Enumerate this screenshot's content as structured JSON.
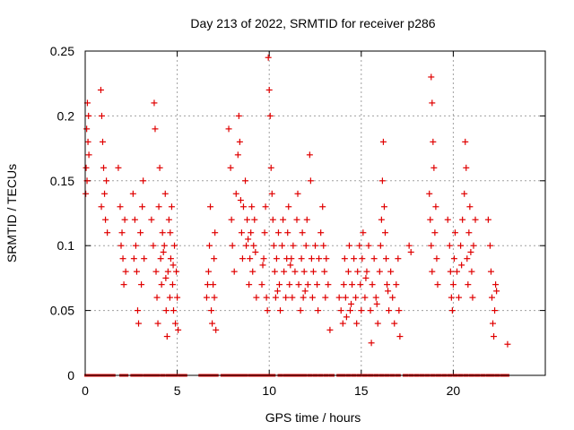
{
  "chart_data": {
    "type": "scatter",
    "title": "Day 213 of 2022, SRMTID for receiver p286",
    "xlabel": "GPS time / hours",
    "ylabel": "SRMTID / TECUs",
    "xlim": [
      0,
      25
    ],
    "ylim": [
      0,
      0.25
    ],
    "xticks": [
      0,
      5,
      10,
      15,
      20
    ],
    "xtick_labels": [
      "0",
      "5",
      "10",
      "15",
      "20"
    ],
    "yticks": [
      0,
      0.05,
      0.1,
      0.15,
      0.2,
      0.25
    ],
    "ytick_labels": [
      "0",
      "0.05",
      "0.1",
      "0.15",
      "0.2",
      "0.25"
    ],
    "grid": true,
    "marker": "plus",
    "color": "#e00000",
    "series": [
      {
        "name": "SRMTID",
        "points": [
          [
            0.05,
            0.16
          ],
          [
            0.08,
            0.19
          ],
          [
            0.12,
            0.21
          ],
          [
            0.15,
            0.18
          ],
          [
            0.1,
            0.15
          ],
          [
            0.2,
            0.17
          ],
          [
            0.03,
            0.14
          ],
          [
            0.18,
            0.2
          ],
          [
            0.85,
            0.22
          ],
          [
            0.9,
            0.2
          ],
          [
            0.95,
            0.18
          ],
          [
            1.0,
            0.16
          ],
          [
            1.05,
            0.14
          ],
          [
            1.1,
            0.12
          ],
          [
            0.88,
            0.13
          ],
          [
            1.15,
            0.15
          ],
          [
            1.2,
            0.11
          ],
          [
            1.8,
            0.16
          ],
          [
            1.9,
            0.13
          ],
          [
            2.0,
            0.11
          ],
          [
            2.05,
            0.09
          ],
          [
            2.1,
            0.07
          ],
          [
            2.15,
            0.12
          ],
          [
            1.95,
            0.1
          ],
          [
            2.2,
            0.08
          ],
          [
            2.6,
            0.14
          ],
          [
            2.7,
            0.12
          ],
          [
            2.75,
            0.1
          ],
          [
            2.8,
            0.08
          ],
          [
            2.85,
            0.05
          ],
          [
            2.9,
            0.04
          ],
          [
            3.0,
            0.11
          ],
          [
            3.1,
            0.13
          ],
          [
            3.15,
            0.15
          ],
          [
            3.2,
            0.09
          ],
          [
            2.65,
            0.09
          ],
          [
            3.05,
            0.07
          ],
          [
            3.6,
            0.12
          ],
          [
            3.7,
            0.1
          ],
          [
            3.75,
            0.21
          ],
          [
            3.8,
            0.19
          ],
          [
            3.85,
            0.08
          ],
          [
            3.9,
            0.06
          ],
          [
            3.95,
            0.04
          ],
          [
            4.0,
            0.13
          ],
          [
            4.05,
            0.16
          ],
          [
            4.1,
            0.09
          ],
          [
            4.15,
            0.07
          ],
          [
            4.2,
            0.11
          ],
          [
            4.3,
            0.1
          ],
          [
            4.35,
            0.14
          ],
          [
            4.4,
            0.05
          ],
          [
            4.45,
            0.03
          ],
          [
            4.5,
            0.08
          ],
          [
            4.55,
            0.12
          ],
          [
            4.6,
            0.06
          ],
          [
            4.65,
            0.09
          ],
          [
            4.7,
            0.13
          ],
          [
            4.75,
            0.07
          ],
          [
            4.8,
            0.05
          ],
          [
            4.85,
            0.1
          ],
          [
            4.9,
            0.04
          ],
          [
            4.95,
            0.08
          ],
          [
            5.0,
            0.06
          ],
          [
            5.05,
            0.035
          ],
          [
            4.25,
            0.095
          ],
          [
            4.38,
            0.075
          ],
          [
            4.62,
            0.11
          ],
          [
            4.78,
            0.085
          ],
          [
            6.6,
            0.06
          ],
          [
            6.7,
            0.08
          ],
          [
            6.75,
            0.1
          ],
          [
            6.8,
            0.13
          ],
          [
            6.85,
            0.05
          ],
          [
            6.9,
            0.04
          ],
          [
            6.95,
            0.07
          ],
          [
            7.0,
            0.09
          ],
          [
            7.05,
            0.11
          ],
          [
            7.1,
            0.035
          ],
          [
            6.65,
            0.07
          ],
          [
            7.02,
            0.06
          ],
          [
            7.8,
            0.19
          ],
          [
            7.9,
            0.16
          ],
          [
            7.95,
            0.12
          ],
          [
            8.0,
            0.1
          ],
          [
            8.1,
            0.08
          ],
          [
            8.2,
            0.14
          ],
          [
            8.3,
            0.17
          ],
          [
            8.35,
            0.2
          ],
          [
            8.4,
            0.18
          ],
          [
            8.5,
            0.11
          ],
          [
            8.55,
            0.09
          ],
          [
            8.6,
            0.13
          ],
          [
            8.7,
            0.15
          ],
          [
            8.75,
            0.1
          ],
          [
            8.8,
            0.12
          ],
          [
            8.9,
            0.07
          ],
          [
            8.95,
            0.09
          ],
          [
            9.0,
            0.11
          ],
          [
            9.05,
            0.13
          ],
          [
            9.1,
            0.08
          ],
          [
            9.15,
            0.1
          ],
          [
            9.2,
            0.12
          ],
          [
            9.3,
            0.06
          ],
          [
            8.45,
            0.135
          ],
          [
            8.85,
            0.105
          ],
          [
            9.25,
            0.095
          ],
          [
            9.6,
            0.07
          ],
          [
            9.7,
            0.09
          ],
          [
            9.75,
            0.11
          ],
          [
            9.8,
            0.13
          ],
          [
            9.85,
            0.06
          ],
          [
            9.9,
            0.05
          ],
          [
            9.95,
            0.245
          ],
          [
            10.0,
            0.22
          ],
          [
            10.05,
            0.2
          ],
          [
            10.1,
            0.16
          ],
          [
            10.15,
            0.14
          ],
          [
            10.2,
            0.12
          ],
          [
            10.25,
            0.1
          ],
          [
            10.3,
            0.08
          ],
          [
            10.35,
            0.06
          ],
          [
            10.4,
            0.09
          ],
          [
            10.5,
            0.11
          ],
          [
            10.55,
            0.07
          ],
          [
            10.6,
            0.05
          ],
          [
            10.7,
            0.1
          ],
          [
            10.75,
            0.12
          ],
          [
            10.8,
            0.08
          ],
          [
            10.9,
            0.06
          ],
          [
            10.95,
            0.09
          ],
          [
            11.0,
            0.11
          ],
          [
            11.05,
            0.13
          ],
          [
            11.1,
            0.07
          ],
          [
            11.2,
            0.09
          ],
          [
            11.25,
            0.06
          ],
          [
            11.3,
            0.1
          ],
          [
            11.4,
            0.08
          ],
          [
            11.5,
            0.12
          ],
          [
            11.55,
            0.14
          ],
          [
            11.6,
            0.07
          ],
          [
            11.7,
            0.05
          ],
          [
            11.75,
            0.09
          ],
          [
            11.8,
            0.11
          ],
          [
            11.85,
            0.06
          ],
          [
            11.9,
            0.08
          ],
          [
            12.0,
            0.1
          ],
          [
            12.05,
            0.12
          ],
          [
            12.1,
            0.07
          ],
          [
            12.2,
            0.17
          ],
          [
            12.25,
            0.15
          ],
          [
            12.3,
            0.09
          ],
          [
            12.35,
            0.06
          ],
          [
            12.4,
            0.08
          ],
          [
            12.5,
            0.1
          ],
          [
            12.6,
            0.07
          ],
          [
            12.65,
            0.05
          ],
          [
            12.7,
            0.09
          ],
          [
            12.8,
            0.11
          ],
          [
            12.9,
            0.13
          ],
          [
            12.95,
            0.1
          ],
          [
            13.0,
            0.08
          ],
          [
            13.05,
            0.06
          ],
          [
            13.1,
            0.09
          ],
          [
            13.2,
            0.07
          ],
          [
            9.65,
            0.085
          ],
          [
            10.45,
            0.065
          ],
          [
            11.15,
            0.085
          ],
          [
            11.95,
            0.065
          ],
          [
            13.3,
            0.035
          ],
          [
            13.8,
            0.06
          ],
          [
            13.9,
            0.05
          ],
          [
            14.0,
            0.04
          ],
          [
            14.05,
            0.07
          ],
          [
            14.1,
            0.09
          ],
          [
            14.15,
            0.06
          ],
          [
            14.2,
            0.045
          ],
          [
            14.3,
            0.08
          ],
          [
            14.35,
            0.1
          ],
          [
            14.4,
            0.05
          ],
          [
            14.5,
            0.07
          ],
          [
            14.6,
            0.09
          ],
          [
            14.7,
            0.06
          ],
          [
            14.75,
            0.04
          ],
          [
            14.8,
            0.08
          ],
          [
            14.9,
            0.1
          ],
          [
            14.95,
            0.07
          ],
          [
            15.0,
            0.05
          ],
          [
            15.05,
            0.09
          ],
          [
            15.1,
            0.11
          ],
          [
            15.2,
            0.06
          ],
          [
            15.3,
            0.08
          ],
          [
            15.4,
            0.1
          ],
          [
            15.5,
            0.05
          ],
          [
            15.55,
            0.025
          ],
          [
            15.6,
            0.07
          ],
          [
            15.7,
            0.09
          ],
          [
            15.8,
            0.06
          ],
          [
            15.9,
            0.04
          ],
          [
            16.0,
            0.08
          ],
          [
            16.05,
            0.1
          ],
          [
            16.1,
            0.12
          ],
          [
            16.15,
            0.15
          ],
          [
            16.2,
            0.18
          ],
          [
            16.25,
            0.13
          ],
          [
            16.3,
            0.11
          ],
          [
            16.35,
            0.09
          ],
          [
            16.4,
            0.07
          ],
          [
            16.5,
            0.05
          ],
          [
            16.6,
            0.08
          ],
          [
            16.7,
            0.06
          ],
          [
            16.8,
            0.04
          ],
          [
            16.9,
            0.07
          ],
          [
            17.0,
            0.09
          ],
          [
            17.05,
            0.05
          ],
          [
            17.1,
            0.03
          ],
          [
            14.45,
            0.055
          ],
          [
            15.25,
            0.075
          ],
          [
            15.85,
            0.055
          ],
          [
            16.45,
            0.065
          ],
          [
            17.6,
            0.1
          ],
          [
            17.7,
            0.095
          ],
          [
            18.8,
            0.23
          ],
          [
            18.85,
            0.21
          ],
          [
            18.9,
            0.18
          ],
          [
            18.95,
            0.16
          ],
          [
            18.7,
            0.14
          ],
          [
            18.75,
            0.12
          ],
          [
            18.8,
            0.1
          ],
          [
            18.85,
            0.08
          ],
          [
            19.0,
            0.11
          ],
          [
            19.05,
            0.13
          ],
          [
            19.1,
            0.09
          ],
          [
            19.15,
            0.07
          ],
          [
            19.7,
            0.12
          ],
          [
            19.8,
            0.1
          ],
          [
            19.85,
            0.08
          ],
          [
            19.9,
            0.06
          ],
          [
            19.95,
            0.05
          ],
          [
            20.0,
            0.07
          ],
          [
            20.05,
            0.09
          ],
          [
            20.1,
            0.11
          ],
          [
            20.2,
            0.08
          ],
          [
            20.3,
            0.06
          ],
          [
            20.4,
            0.1
          ],
          [
            20.5,
            0.12
          ],
          [
            20.6,
            0.14
          ],
          [
            20.65,
            0.18
          ],
          [
            20.7,
            0.16
          ],
          [
            20.75,
            0.09
          ],
          [
            20.8,
            0.07
          ],
          [
            20.85,
            0.11
          ],
          [
            20.9,
            0.13
          ],
          [
            21.0,
            0.08
          ],
          [
            21.05,
            0.06
          ],
          [
            21.1,
            0.1
          ],
          [
            21.2,
            0.12
          ],
          [
            20.45,
            0.085
          ],
          [
            20.95,
            0.095
          ],
          [
            21.9,
            0.12
          ],
          [
            22.0,
            0.1
          ],
          [
            22.05,
            0.08
          ],
          [
            22.1,
            0.06
          ],
          [
            22.15,
            0.04
          ],
          [
            22.2,
            0.03
          ],
          [
            22.25,
            0.05
          ],
          [
            22.3,
            0.07
          ],
          [
            22.35,
            0.065
          ],
          [
            22.95,
            0.024
          ]
        ]
      }
    ],
    "zero_points": [
      0.1,
      0.3,
      0.5,
      0.7,
      0.9,
      1.1,
      1.3,
      1.5,
      2.0,
      2.2,
      2.6,
      2.8,
      3.0,
      3.3,
      3.5,
      3.7,
      3.9,
      4.2,
      4.5,
      4.7,
      4.9,
      5.2,
      5.4,
      6.3,
      6.5,
      6.7,
      6.9,
      7.1,
      7.5,
      7.7,
      7.9,
      8.1,
      8.3,
      8.5,
      8.7,
      9.0,
      9.2,
      9.4,
      9.6,
      9.8,
      10.0,
      10.2,
      10.6,
      10.9,
      11.1,
      11.3,
      11.5,
      11.7,
      11.9,
      12.2,
      12.5,
      12.8,
      13.1,
      13.4,
      13.8,
      14.0,
      14.3,
      14.6,
      14.9,
      15.2,
      15.5,
      15.8,
      16.1,
      16.4,
      16.7,
      17.0,
      17.4,
      17.7,
      18.0,
      18.3,
      18.6,
      18.9,
      19.2,
      19.5,
      19.8,
      20.1,
      20.4,
      20.7,
      21.0,
      21.3,
      21.6,
      21.9,
      22.1,
      22.4,
      22.7,
      22.9
    ]
  }
}
